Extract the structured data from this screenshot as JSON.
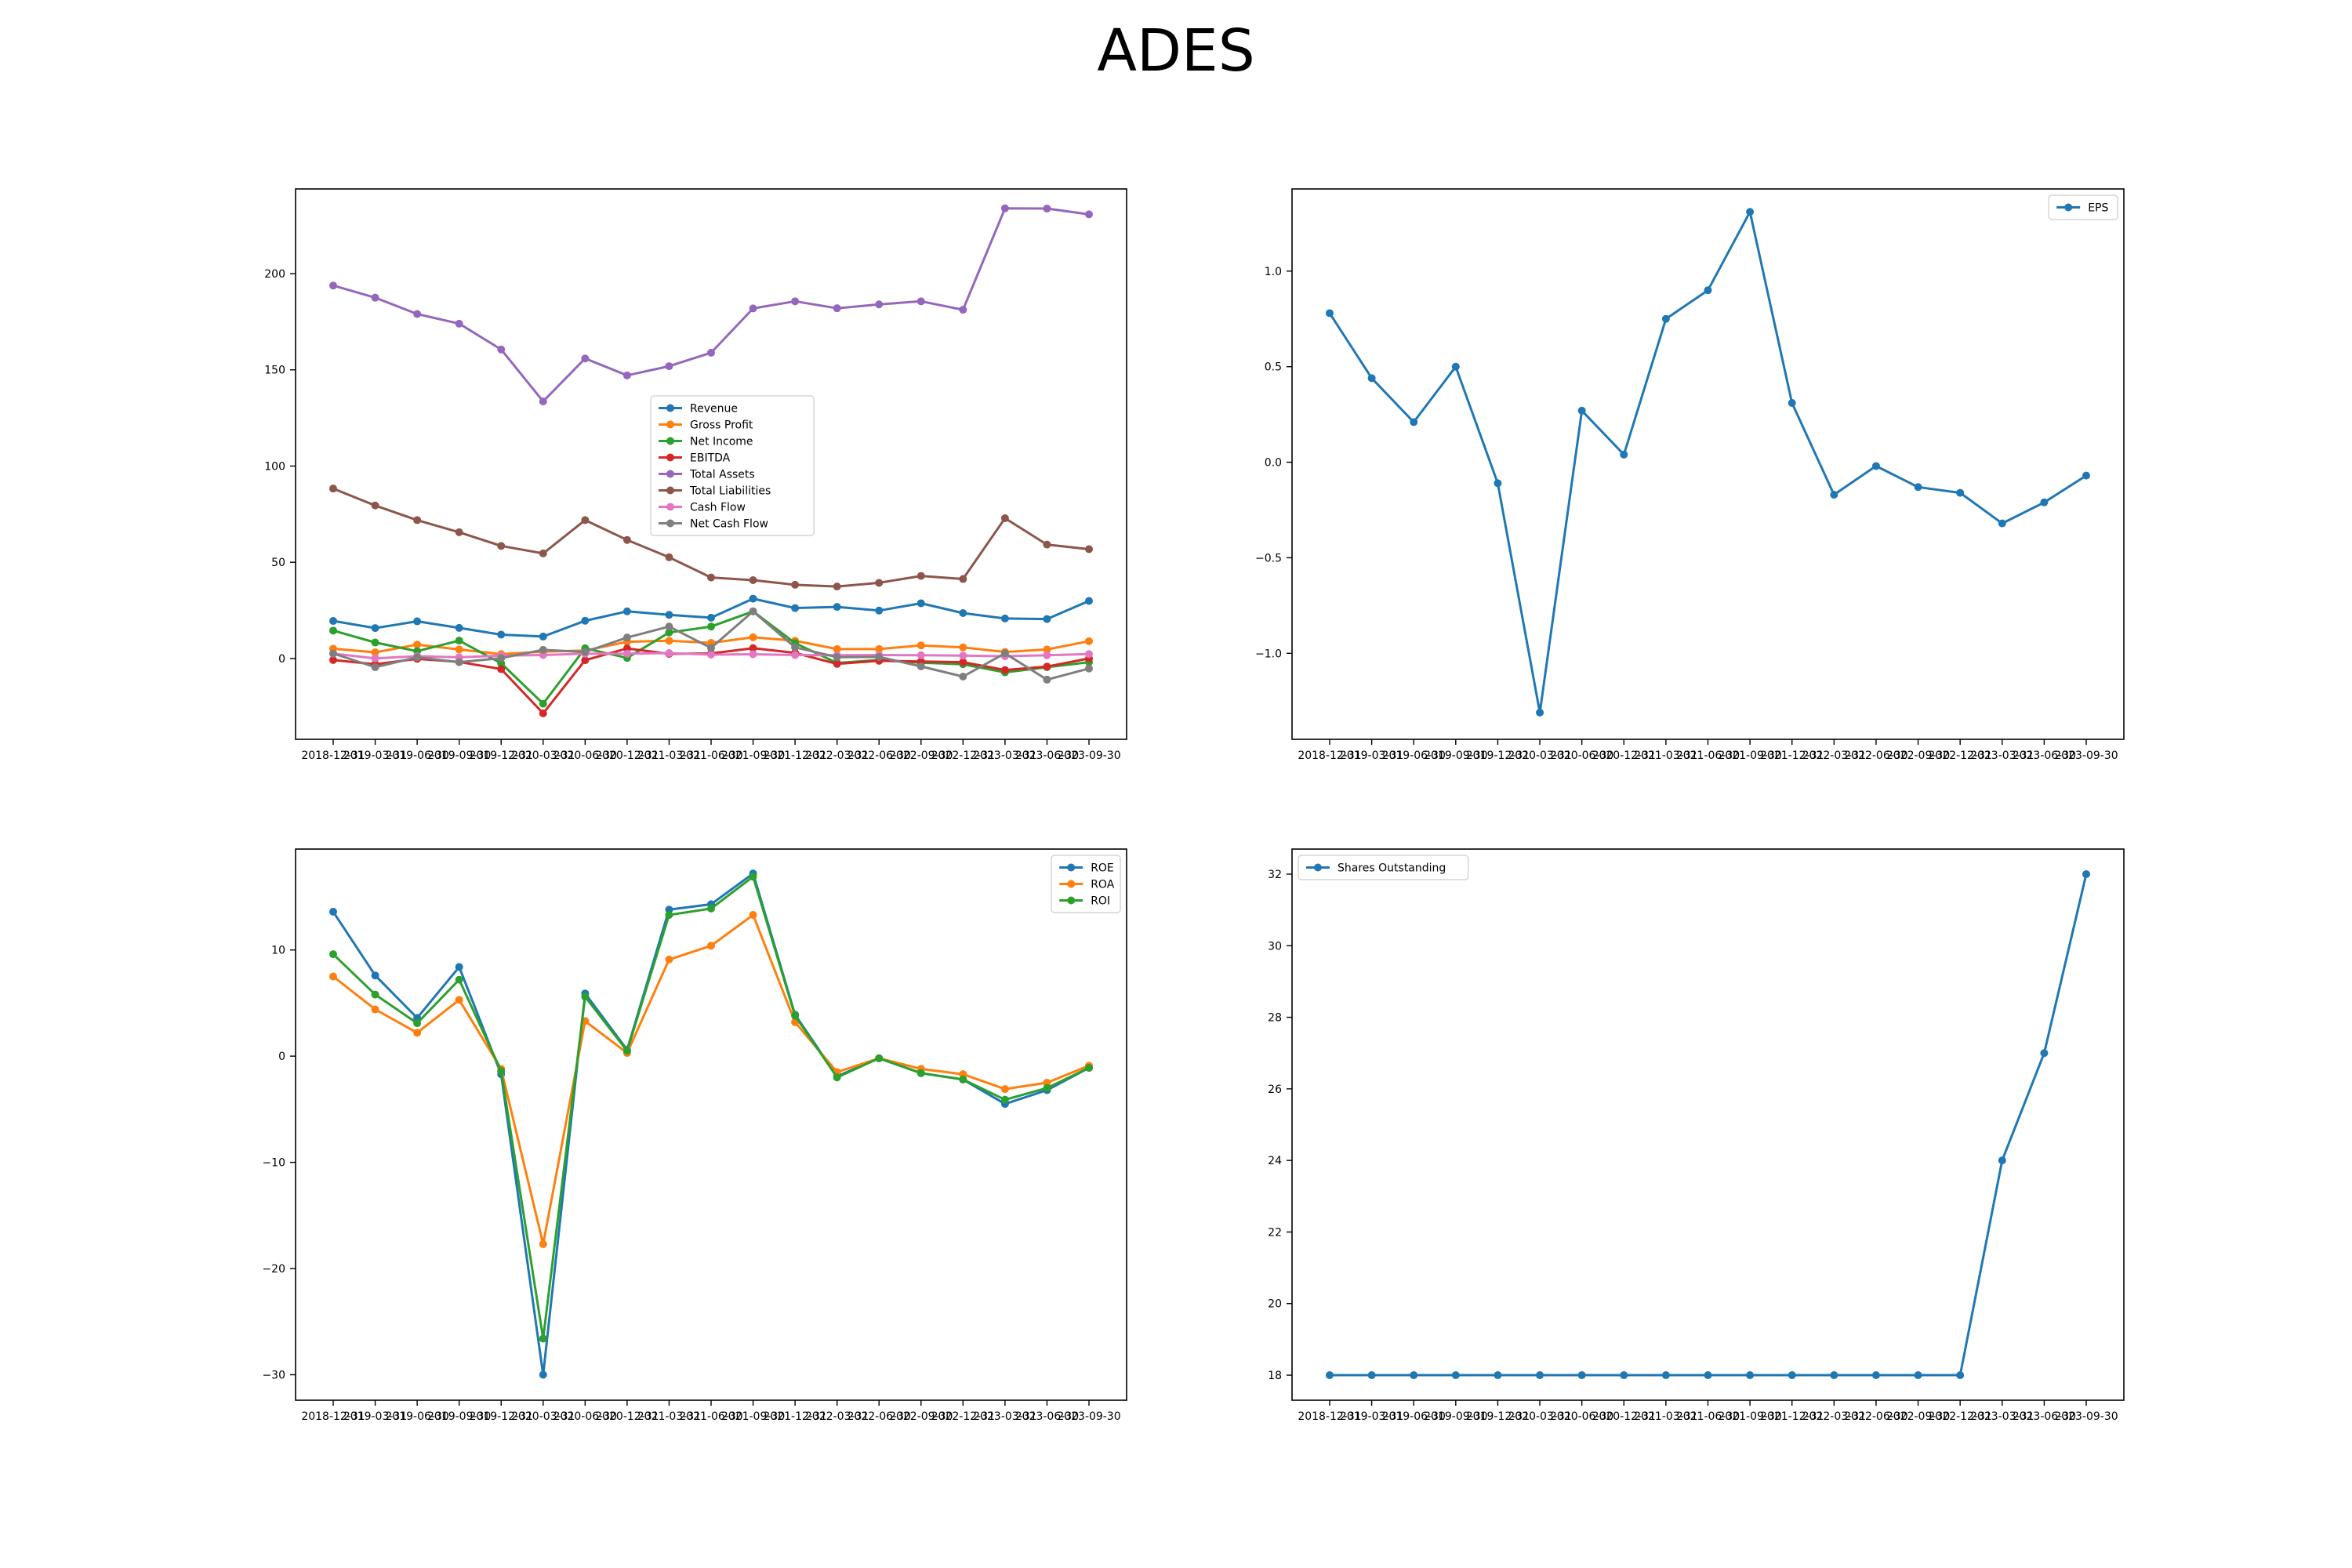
{
  "title": "ADES",
  "chart_data": [
    {
      "type": "line",
      "x": [
        "2018-12-31",
        "2019-03-31",
        "2019-06-30",
        "2019-09-30",
        "2019-12-31",
        "2020-03-31",
        "2020-06-30",
        "2020-12-31",
        "2021-03-31",
        "2021-06-30",
        "2021-09-30",
        "2021-12-31",
        "2022-03-31",
        "2022-06-30",
        "2022-09-30",
        "2022-12-31",
        "2023-03-31",
        "2023-06-30",
        "2023-09-30"
      ],
      "ylim": [
        -42,
        244
      ],
      "yticks": [
        0,
        50,
        100,
        150,
        200
      ],
      "legend_position": "center",
      "series": [
        {
          "name": "Revenue",
          "color": "#1f77b4",
          "values": [
            19.5,
            15.8,
            19.3,
            15.9,
            12.4,
            11.4,
            19.6,
            24.5,
            22.7,
            21.2,
            31.1,
            26.2,
            26.8,
            24.9,
            28.7,
            23.6,
            20.8,
            20.5,
            29.9
          ]
        },
        {
          "name": "Gross Profit",
          "color": "#ff7f0e",
          "values": [
            5.1,
            3.2,
            7.2,
            4.7,
            2.3,
            3.5,
            4.1,
            8.7,
            9.2,
            8.1,
            11.0,
            9.2,
            4.9,
            4.9,
            6.8,
            5.8,
            3.4,
            4.7,
            9.0
          ]
        },
        {
          "name": "Net Income",
          "color": "#2ca02c",
          "values": [
            14.5,
            8.3,
            3.8,
            9.3,
            -2.5,
            -23.5,
            5.3,
            0.3,
            13.5,
            16.6,
            24.5,
            8.0,
            -2.3,
            -0.8,
            -2.2,
            -3.0,
            -7.2,
            -4.5,
            -1.9
          ]
        },
        {
          "name": "EBITDA",
          "color": "#d62728",
          "values": [
            -0.8,
            -3.0,
            -0.2,
            -1.8,
            -5.5,
            -28.5,
            -0.9,
            5.2,
            2.4,
            2.6,
            5.4,
            2.9,
            -2.8,
            -1.2,
            -1.6,
            -1.9,
            -6.0,
            -4.2,
            0.0
          ]
        },
        {
          "name": "Total Assets",
          "color": "#9467bd",
          "values": [
            193.8,
            187.5,
            179.0,
            174.0,
            160.6,
            133.6,
            155.9,
            147.1,
            151.9,
            158.9,
            181.9,
            185.6,
            182.0,
            184.0,
            185.6,
            181.2,
            233.9,
            233.8,
            230.8
          ]
        },
        {
          "name": "Total Liabilities",
          "color": "#8c564b",
          "values": [
            88.3,
            79.5,
            71.9,
            65.6,
            58.5,
            54.6,
            71.9,
            61.6,
            52.6,
            42.1,
            40.7,
            38.3,
            37.4,
            39.3,
            42.9,
            41.3,
            72.9,
            59.2,
            56.8
          ]
        },
        {
          "name": "Cash Flow",
          "color": "#e377c2",
          "values": [
            2.5,
            0.1,
            1.2,
            0.6,
            1.5,
            1.8,
            2.5,
            2.5,
            2.8,
            2.0,
            2.2,
            1.8,
            1.7,
            1.8,
            1.7,
            1.5,
            1.2,
            1.7,
            2.3
          ]
        },
        {
          "name": "Net Cash Flow",
          "color": "#7f7f7f",
          "values": [
            2.6,
            -4.5,
            0.6,
            -1.9,
            0.2,
            4.5,
            3.4,
            10.9,
            16.6,
            5.5,
            24.5,
            5.8,
            0.7,
            0.8,
            -4.1,
            -9.4,
            2.7,
            -11.0,
            -5.2
          ]
        }
      ]
    },
    {
      "type": "line",
      "x": [
        "2018-12-31",
        "2019-03-31",
        "2019-06-30",
        "2019-09-30",
        "2019-12-31",
        "2020-03-31",
        "2020-06-30",
        "2020-12-31",
        "2021-03-31",
        "2021-06-30",
        "2021-09-30",
        "2021-12-31",
        "2022-03-31",
        "2022-06-30",
        "2022-09-30",
        "2022-12-31",
        "2023-03-31",
        "2023-06-30",
        "2023-09-30"
      ],
      "ylim": [
        -1.45,
        1.43
      ],
      "yticks": [
        -1.0,
        -0.5,
        0.0,
        0.5,
        1.0
      ],
      "legend_position": "upper right",
      "series": [
        {
          "name": "EPS",
          "color": "#1f77b4",
          "values": [
            0.78,
            0.44,
            0.21,
            0.5,
            -0.11,
            -1.31,
            0.27,
            0.04,
            0.75,
            0.9,
            1.31,
            0.31,
            -0.17,
            -0.02,
            -0.13,
            -0.16,
            -0.32,
            -0.21,
            -0.07
          ]
        }
      ]
    },
    {
      "type": "line",
      "x": [
        "2018-12-31",
        "2019-03-31",
        "2019-06-30",
        "2019-09-30",
        "2019-12-31",
        "2020-03-31",
        "2020-06-30",
        "2020-12-31",
        "2021-03-31",
        "2021-06-30",
        "2021-09-30",
        "2021-12-31",
        "2022-03-31",
        "2022-06-30",
        "2022-09-30",
        "2022-12-31",
        "2023-03-31",
        "2023-06-30",
        "2023-09-30"
      ],
      "ylim": [
        -32.4,
        19.5
      ],
      "yticks": [
        -30,
        -20,
        -10,
        0,
        10
      ],
      "legend_position": "upper right",
      "series": [
        {
          "name": "ROE",
          "color": "#1f77b4",
          "values": [
            13.6,
            7.6,
            3.6,
            8.4,
            -1.7,
            -30.0,
            5.9,
            0.6,
            13.8,
            14.3,
            17.2,
            3.9,
            -1.9,
            -0.2,
            -1.6,
            -2.2,
            -4.5,
            -3.2,
            -1.1
          ]
        },
        {
          "name": "ROA",
          "color": "#ff7f0e",
          "values": [
            7.5,
            4.4,
            2.2,
            5.3,
            -1.2,
            -17.7,
            3.3,
            0.3,
            9.1,
            10.4,
            13.3,
            3.2,
            -1.5,
            -0.2,
            -1.2,
            -1.7,
            -3.1,
            -2.5,
            -0.9
          ]
        },
        {
          "name": "ROI",
          "color": "#2ca02c",
          "values": [
            9.6,
            5.8,
            3.1,
            7.2,
            -1.4,
            -26.6,
            5.6,
            0.5,
            13.3,
            13.9,
            16.9,
            3.8,
            -2.0,
            -0.2,
            -1.6,
            -2.2,
            -4.1,
            -3.0,
            -1.1
          ]
        }
      ]
    },
    {
      "type": "line",
      "x": [
        "2018-12-31",
        "2019-03-31",
        "2019-06-30",
        "2019-09-30",
        "2019-12-31",
        "2020-03-31",
        "2020-06-30",
        "2020-12-31",
        "2021-03-31",
        "2021-06-30",
        "2021-09-30",
        "2021-12-31",
        "2022-03-31",
        "2022-06-30",
        "2022-09-30",
        "2022-12-31",
        "2023-03-31",
        "2023-06-30",
        "2023-09-30"
      ],
      "ylim": [
        17.3,
        32.7
      ],
      "yticks": [
        18,
        20,
        22,
        24,
        26,
        28,
        30,
        32
      ],
      "legend_position": "upper left",
      "series": [
        {
          "name": "Shares Outstanding",
          "color": "#1f77b4",
          "values": [
            18,
            18,
            18,
            18,
            18,
            18,
            18,
            18,
            18,
            18,
            18,
            18,
            18,
            18,
            18,
            18,
            24,
            27,
            32
          ]
        }
      ]
    }
  ]
}
